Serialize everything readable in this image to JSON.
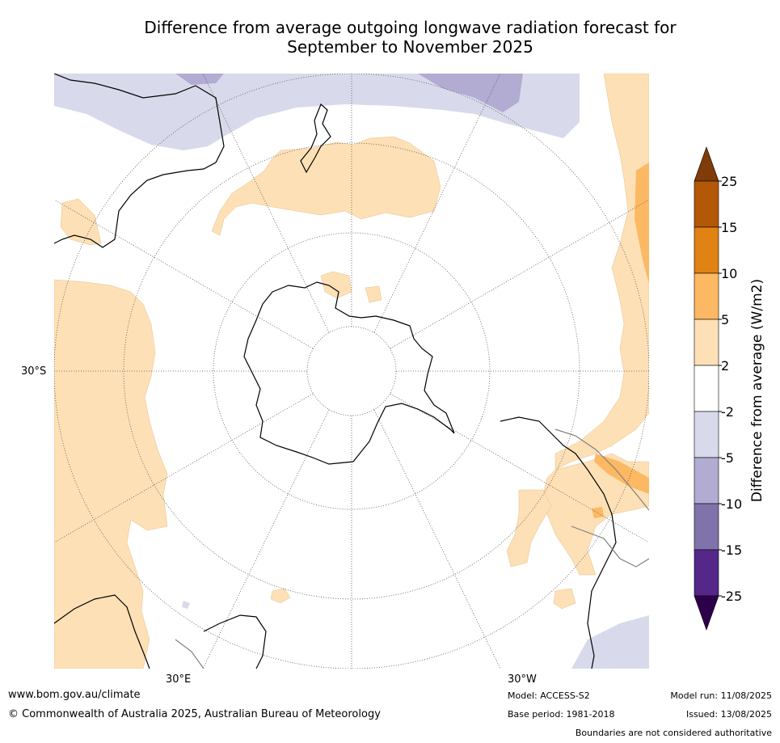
{
  "title_line1": "Difference from average outgoing longwave radiation forecast for",
  "title_line2": "September to November 2025",
  "map": {
    "labels": {
      "lat30s": "30°S",
      "lon30e": "30°E",
      "lon30w": "30°W"
    },
    "colors": {
      "land_outline": "#000000",
      "boundary": "#808080",
      "graticule": "#555555",
      "pos_2_5": "#fde0b6",
      "pos_5_10": "#fdb863",
      "neg_2_5": "#d8daeb",
      "neg_5_10": "#b2abd2"
    }
  },
  "colorbar": {
    "title": "Difference from average (W/m2)",
    "ticks": [
      "25",
      "15",
      "10",
      "5",
      "2",
      "-2",
      "-5",
      "-10",
      "-15",
      "-25"
    ],
    "bins": [
      {
        "range": ">25",
        "color": "#7f3b08"
      },
      {
        "range": "15 to 25",
        "color": "#b35806"
      },
      {
        "range": "10 to 15",
        "color": "#e08214"
      },
      {
        "range": "5 to 10",
        "color": "#fdb863"
      },
      {
        "range": "2 to 5",
        "color": "#fee0b6"
      },
      {
        "range": "-2 to 2",
        "color": "#ffffff"
      },
      {
        "range": "-5 to -2",
        "color": "#d8daeb"
      },
      {
        "range": "-10 to -5",
        "color": "#b2abd2"
      },
      {
        "range": "-15 to -10",
        "color": "#8073ac"
      },
      {
        "range": "-25 to -15",
        "color": "#542788"
      },
      {
        "range": "<-25",
        "color": "#2d004b"
      }
    ]
  },
  "footer": {
    "website": "www.bom.gov.au/climate",
    "copyright": "© Commonwealth of Australia 2025, Australian Bureau of Meteorology",
    "model": "Model: ACCESS-S2",
    "base_period": "Base period: 1981-2018",
    "model_run": "Model run: 11/08/2025",
    "issued": "Issued: 13/08/2025",
    "disclaimer": "Boundaries are not considered authoritative"
  }
}
